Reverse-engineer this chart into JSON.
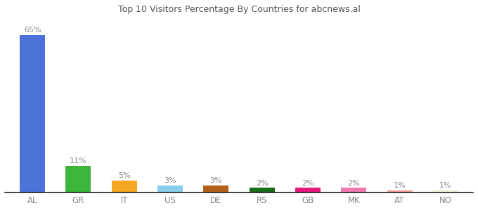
{
  "categories": [
    "AL",
    "GR",
    "IT",
    "US",
    "DE",
    "RS",
    "GB",
    "MK",
    "AT",
    "NO"
  ],
  "values": [
    65,
    11,
    5,
    3,
    3,
    2,
    2,
    2,
    1,
    1
  ],
  "colors": [
    "#4a72d9",
    "#3cb53c",
    "#f5a623",
    "#87ceeb",
    "#b5601a",
    "#1a6b1a",
    "#e8197a",
    "#f07ab0",
    "#f0a0a0",
    "#f0f0d0"
  ],
  "labels": [
    "65%",
    "11%",
    "5%",
    "3%",
    "3%",
    "2%",
    "2%",
    "2%",
    "1%",
    "1%"
  ],
  "title": "Top 10 Visitors Percentage By Countries for abcnews.al",
  "title_fontsize": 9,
  "label_fontsize": 8,
  "tick_fontsize": 8.5,
  "label_color": "#888888",
  "tick_color": "#888888",
  "background_color": "#ffffff",
  "ylim": [
    0,
    72
  ],
  "bar_width": 0.55
}
